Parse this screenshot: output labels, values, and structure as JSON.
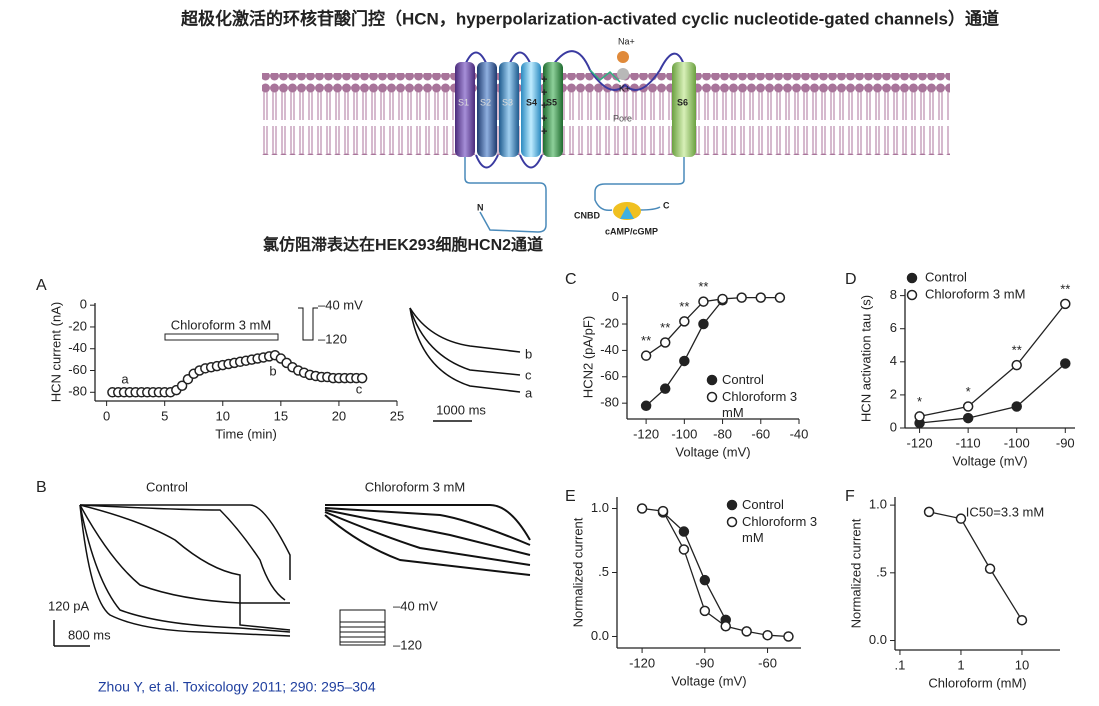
{
  "title": "超极化激活的环核苷酸门控（HCN，hyperpolarization-activated  cyclic nucleotide-gated channels）通道",
  "diagram": {
    "ions": [
      "Na+",
      "K+"
    ],
    "pore": "Pore",
    "segments": [
      "S1",
      "S2",
      "S3",
      "S4",
      "S5",
      "S6"
    ],
    "n_term": "N",
    "c_term": "C",
    "cnbd": "CNBD",
    "ligand": "cAMP/cGMP"
  },
  "subtitle": "氯仿阻滞表达在HEK293细胞HCN2通道",
  "traces": {
    "a_scale": "1000 ms",
    "a_labels": [
      "b",
      "c",
      "a"
    ],
    "panel": "B",
    "control": "Control",
    "chloroform": "Chloroform 3 mM",
    "current_scale": "120 pA",
    "time_scale": "800 ms",
    "protocol_labels": [
      "–40 mV",
      "–120"
    ]
  },
  "citation": "Zhou Y, et al. Toxicology 2011; 290: 295–304",
  "chart_data": [
    {
      "type": "scatter",
      "panel": "A",
      "xlabel": "Time (min)",
      "ylabel": "HCN current (nA)",
      "x": [
        0.5,
        1,
        1.5,
        2,
        2.5,
        3,
        3.5,
        4,
        4.5,
        5,
        5.5,
        6,
        6.5,
        7,
        7.5,
        8,
        8.5,
        9,
        9.5,
        10,
        10.5,
        11,
        11.5,
        12,
        12.5,
        13,
        13.5,
        14,
        14.5,
        15,
        15.5,
        16,
        16.5,
        17,
        17.5,
        18,
        18.5,
        19,
        19.5,
        20,
        20.5,
        21,
        21.5,
        22
      ],
      "series": [
        {
          "marker": "open",
          "color": "#222",
          "values": [
            -80,
            -80,
            -80,
            -80,
            -80,
            -80,
            -80,
            -80,
            -80,
            -80,
            -80,
            -78,
            -74,
            -68,
            -63,
            -60,
            -58,
            -57,
            -56,
            -55,
            -54,
            -53,
            -52,
            -51,
            -50,
            -49,
            -48,
            -47,
            -46,
            -49,
            -53,
            -57,
            -60,
            -62,
            -64,
            -65,
            -66,
            -66,
            -67,
            -67,
            -67,
            -67,
            -67,
            -67
          ]
        }
      ],
      "xlim": [
        -1,
        25
      ],
      "xticks": [
        0,
        5,
        10,
        15,
        20,
        25
      ],
      "ylim": [
        -88,
        2
      ],
      "yticks": [
        0,
        -20,
        -40,
        -60,
        -80
      ],
      "annotations": [
        "a",
        "b",
        "c"
      ],
      "bar_label": "Chloroform 3 mM",
      "protocol_labels": [
        "–40 mV",
        "–120"
      ]
    },
    {
      "type": "line",
      "panel": "C",
      "xlabel": "Voltage (mV)",
      "ylabel": "HCN2 (pA/pF)",
      "x": [
        -120,
        -110,
        -100,
        -90,
        -80,
        -70,
        -60,
        -50
      ],
      "series": [
        {
          "name": "Control",
          "marker": "filled",
          "color": "#222",
          "values": [
            -82,
            -69,
            -48,
            -20,
            -2,
            null,
            null,
            null
          ]
        },
        {
          "name": "Chloroform 3 mM",
          "marker": "open",
          "color": "#222",
          "values": [
            -44,
            -34,
            -18,
            -3,
            -1,
            0,
            0,
            0
          ]
        }
      ],
      "xlim": [
        -130,
        -40
      ],
      "xticks": [
        -120,
        -100,
        -80,
        -60,
        -40
      ],
      "ylim": [
        -92,
        2
      ],
      "yticks": [
        0,
        -20,
        -40,
        -60,
        -80
      ],
      "annotations": [
        "**",
        "**",
        "**",
        "**"
      ]
    },
    {
      "type": "line",
      "panel": "D",
      "xlabel": "Voltage (mV)",
      "ylabel": "HCN activation tau (s)",
      "x": [
        -120,
        -110,
        -100,
        -90
      ],
      "series": [
        {
          "name": "Control",
          "marker": "filled",
          "color": "#222",
          "values": [
            0.3,
            0.6,
            1.3,
            3.9
          ]
        },
        {
          "name": "Chloroform 3 mM",
          "marker": "open",
          "color": "#222",
          "values": [
            0.7,
            1.3,
            3.8,
            7.5
          ]
        }
      ],
      "xlim": [
        -123,
        -88
      ],
      "xticks": [
        -120,
        -110,
        -100,
        -90
      ],
      "ylim": [
        0,
        8.4
      ],
      "yticks": [
        0,
        2,
        4,
        6,
        8
      ],
      "annotations": [
        "*",
        "*",
        "**",
        "**"
      ]
    },
    {
      "type": "line",
      "panel": "E",
      "xlabel": "Voltage (mV)",
      "ylabel": "Normalized current",
      "x": [
        -120,
        -110,
        -100,
        -90,
        -80,
        -70,
        -60,
        -50
      ],
      "series": [
        {
          "name": "Control",
          "marker": "filled",
          "color": "#222",
          "values": [
            null,
            0.97,
            0.82,
            0.44,
            0.13,
            null,
            null,
            null
          ]
        },
        {
          "name": "Chloroform 3 mM",
          "marker": "open",
          "color": "#222",
          "values": [
            1.0,
            0.98,
            0.68,
            0.2,
            0.08,
            0.04,
            0.01,
            0
          ]
        }
      ],
      "xlim": [
        -132,
        -44
      ],
      "xticks": [
        -120,
        -90,
        -60
      ],
      "ylim": [
        -0.09,
        1.09
      ],
      "yticks": [
        {
          "value": 1,
          "label": "1.0"
        },
        {
          "value": 0.5,
          "label": ".5"
        },
        {
          "value": 0,
          "label": "0.0"
        }
      ]
    },
    {
      "type": "line",
      "panel": "F",
      "xlabel": "Chloroform (mM)",
      "ylabel": "Normalized current",
      "xlog": true,
      "x": [
        0.3,
        1,
        3,
        10
      ],
      "series": [
        {
          "marker": "open",
          "color": "#222",
          "values": [
            0.95,
            0.9,
            0.53,
            0.15
          ]
        }
      ],
      "xlim": [
        0.083,
        42
      ],
      "xticks": [
        {
          "value": 0.1,
          "label": ".1"
        },
        1,
        10
      ],
      "ylim": [
        -0.07,
        1.06
      ],
      "yticks": [
        {
          "value": 1,
          "label": "1.0"
        },
        {
          "value": 0.5,
          "label": ".5"
        },
        {
          "value": 0,
          "label": "0.0"
        }
      ],
      "annotations": [
        "IC50=3.3 mM"
      ]
    }
  ]
}
